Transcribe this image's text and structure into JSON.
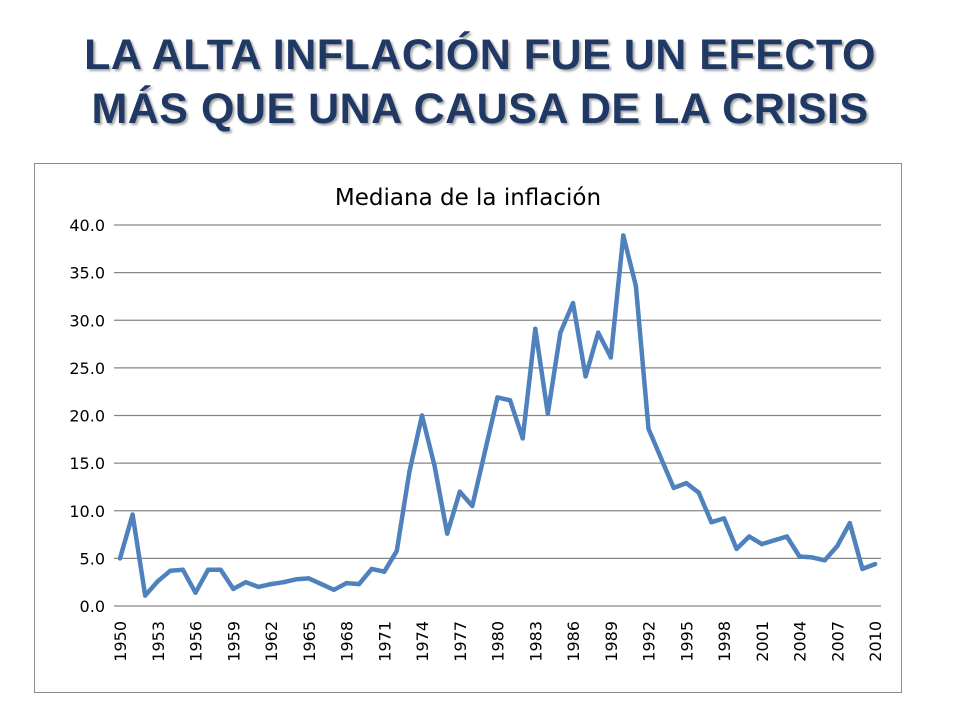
{
  "slide": {
    "title_line1": "LA ALTA INFLACIÓN FUE UN EFECTO",
    "title_line2": "MÁS QUE UNA CAUSA DE LA CRISIS"
  },
  "colors": {
    "title": "#1f3864",
    "series_line": "#4f81bd",
    "gridline": "#868686"
  },
  "chart_data": {
    "type": "line",
    "title": "Mediana de la inflación",
    "xlabel": "",
    "ylabel": "",
    "ylim": [
      0,
      40
    ],
    "yticks": [
      "0.0",
      "5.0",
      "10.0",
      "15.0",
      "20.0",
      "25.0",
      "30.0",
      "35.0",
      "40.0"
    ],
    "xticks": [
      "1950",
      "1953",
      "1956",
      "1959",
      "1962",
      "1965",
      "1968",
      "1971",
      "1974",
      "1977",
      "1980",
      "1983",
      "1986",
      "1989",
      "1992",
      "1995",
      "1998",
      "2001",
      "2004",
      "2007",
      "2010"
    ],
    "grid": true,
    "legend": "none",
    "x": [
      1950,
      1951,
      1952,
      1953,
      1954,
      1955,
      1956,
      1957,
      1958,
      1959,
      1960,
      1961,
      1962,
      1963,
      1964,
      1965,
      1966,
      1967,
      1968,
      1969,
      1970,
      1971,
      1972,
      1973,
      1974,
      1975,
      1976,
      1977,
      1978,
      1979,
      1980,
      1981,
      1982,
      1983,
      1984,
      1985,
      1986,
      1987,
      1988,
      1989,
      1990,
      1991,
      1992,
      1993,
      1994,
      1995,
      1996,
      1997,
      1998,
      1999,
      2000,
      2001,
      2002,
      2003,
      2004,
      2005,
      2006,
      2007,
      2008,
      2009,
      2010
    ],
    "series": [
      {
        "values": [
          5.0,
          9.6,
          1.1,
          2.6,
          3.7,
          3.8,
          1.4,
          3.8,
          3.8,
          1.8,
          2.5,
          2.0,
          2.3,
          2.5,
          2.8,
          2.9,
          2.3,
          1.7,
          2.4,
          2.3,
          3.9,
          3.6,
          5.8,
          14.1,
          20.0,
          14.7,
          7.6,
          12.0,
          10.5,
          16.2,
          21.9,
          21.6,
          17.6,
          29.1,
          20.2,
          28.7,
          31.8,
          24.1,
          28.7,
          26.1,
          38.9,
          33.6,
          18.6,
          15.5,
          12.4,
          12.9,
          11.9,
          8.8,
          9.2,
          6.0,
          7.3,
          6.5,
          6.9,
          7.3,
          5.2,
          5.1,
          4.8,
          6.3,
          8.7,
          3.9,
          4.4
        ]
      }
    ]
  }
}
